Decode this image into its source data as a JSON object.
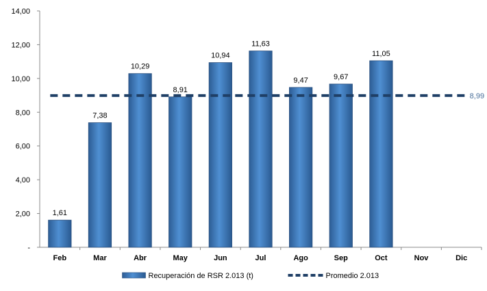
{
  "chart_data": {
    "type": "bar",
    "categories": [
      "Feb",
      "Mar",
      "Abr",
      "May",
      "Jun",
      "Jul",
      "Ago",
      "Sep",
      "Oct",
      "Nov",
      "Dic"
    ],
    "series": [
      {
        "name": "Recuperación de RSR 2.013 (t)",
        "type": "bar",
        "values": [
          1.61,
          7.38,
          10.29,
          8.91,
          10.94,
          11.63,
          9.47,
          9.67,
          11.05,
          null,
          null
        ],
        "labels": [
          "1,61",
          "7,38",
          "10,29",
          "8,91",
          "10,94",
          "11,63",
          "9,47",
          "9,67",
          "11,05",
          "",
          ""
        ],
        "color": "#4a86c8"
      },
      {
        "name": "Promedio 2.013",
        "type": "line",
        "style": "dashed",
        "value": 8.99,
        "label": "8,99",
        "color": "#1f3f66"
      }
    ],
    "y_ticks": [
      "-",
      "2,00",
      "4,00",
      "6,00",
      "8,00",
      "10,00",
      "12,00",
      "14,00"
    ],
    "ylim": [
      0,
      14
    ],
    "title": "",
    "xlabel": "",
    "ylabel": "",
    "grid": false,
    "legend_position": "bottom"
  }
}
